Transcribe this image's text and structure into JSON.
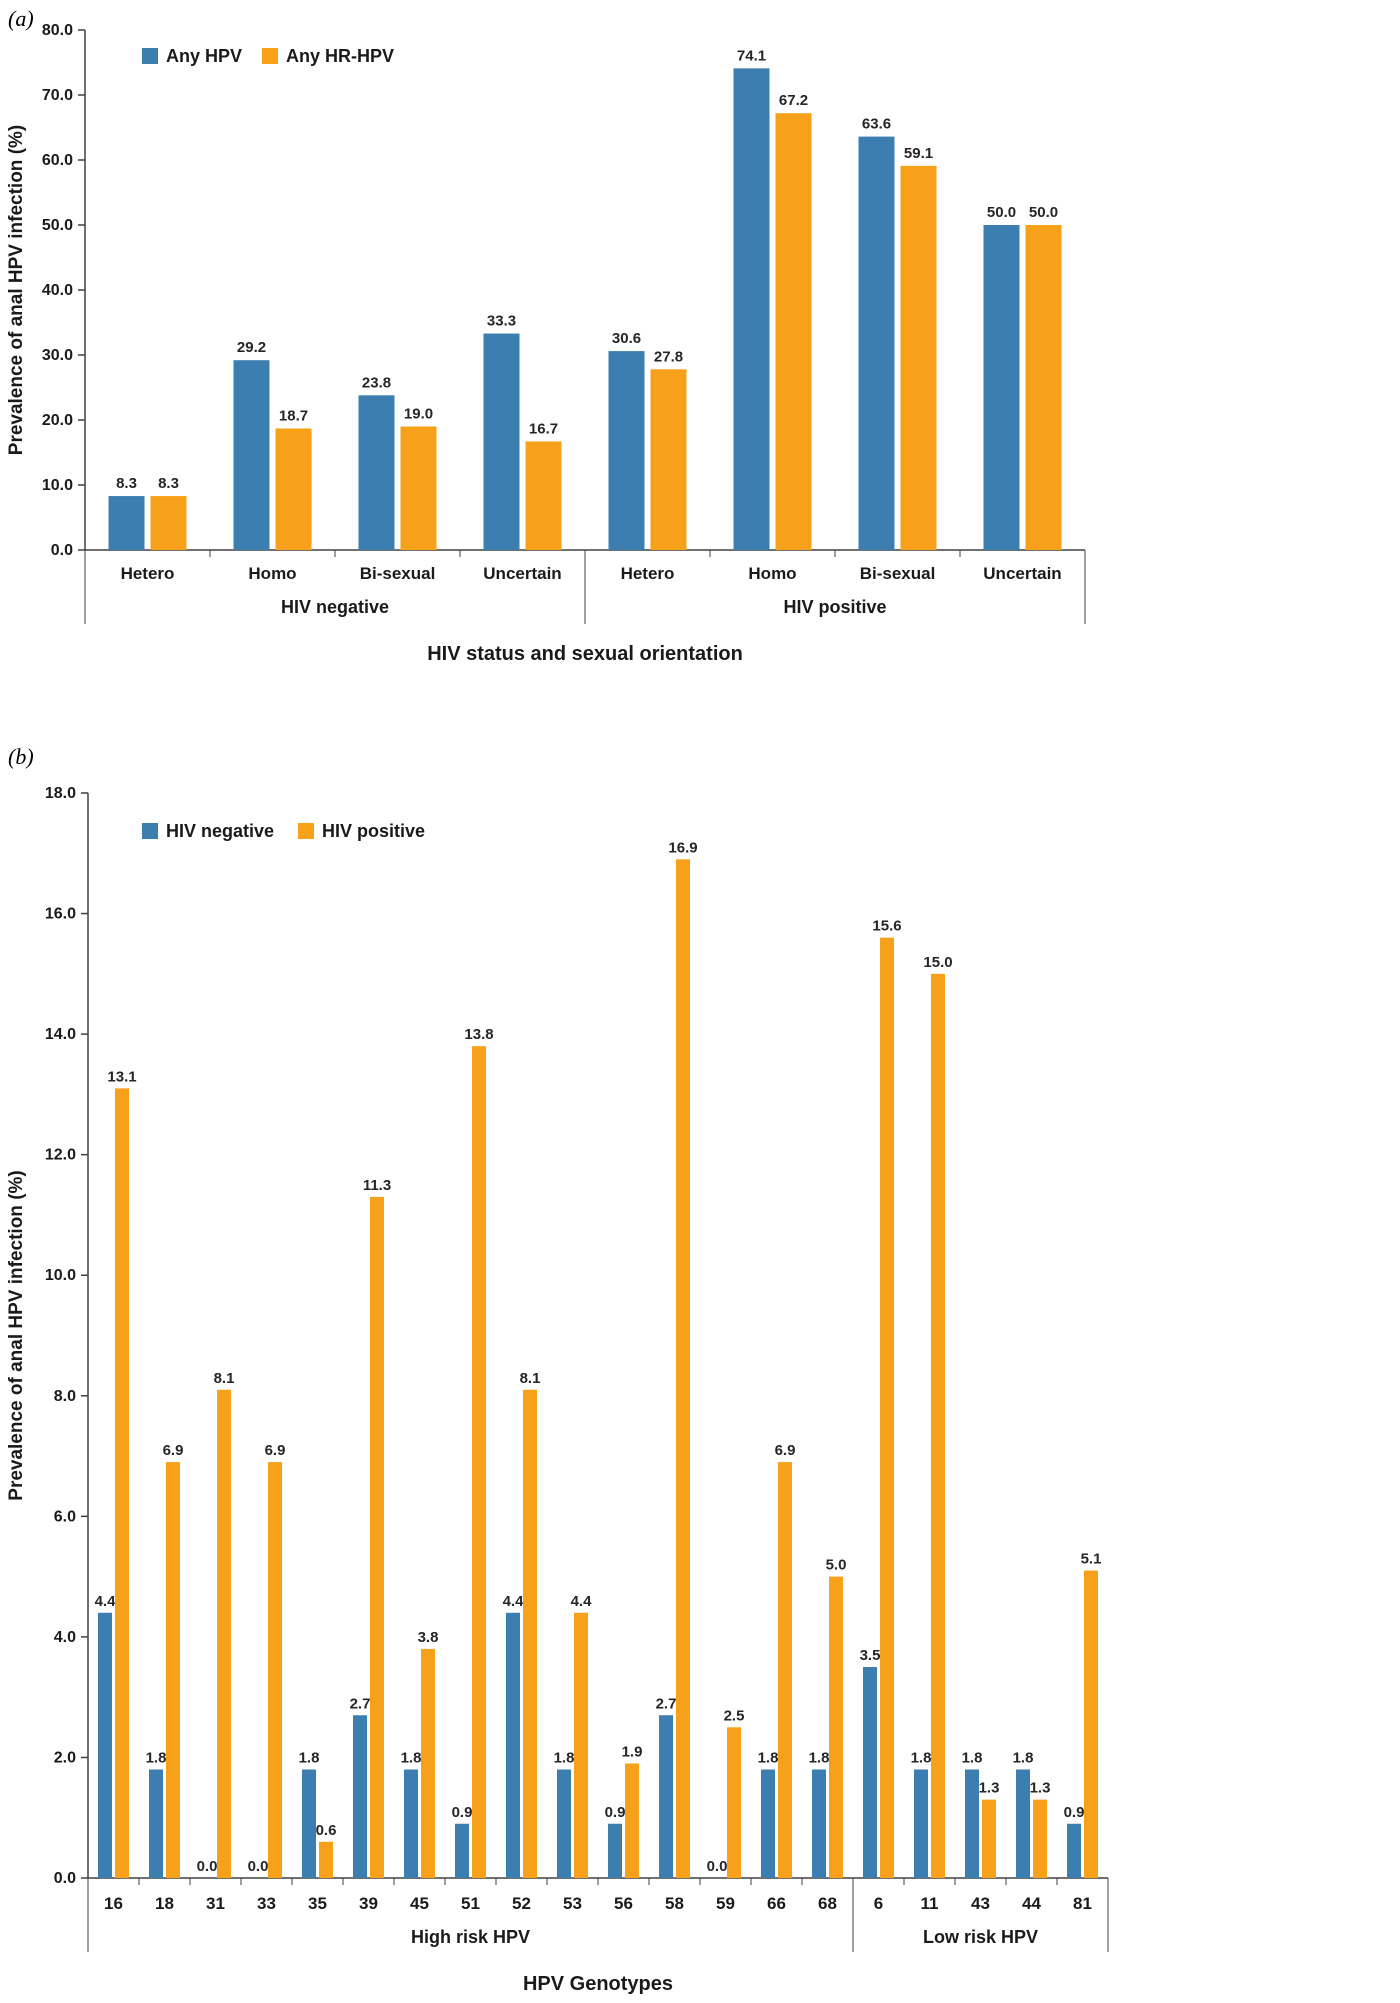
{
  "page": {
    "panel_a_label": "(a)",
    "panel_b_label": "(b)"
  },
  "colors": {
    "blue": "#3C7EB0",
    "orange": "#F7A11A",
    "value_label": "#262626",
    "axis": "#404040",
    "text": "#1A1A1A"
  },
  "chart_data": [
    {
      "type": "bar",
      "panel": "a",
      "title": "",
      "xlabel": "HIV status and sexual orientation",
      "ylabel": "Prevalence of anal HPV infection (%)",
      "ylim": [
        0,
        80
      ],
      "ytick_step": 10,
      "grid": false,
      "legend_position": "top-left-inside",
      "groups": [
        {
          "label": "HIV negative",
          "categories": [
            "Hetero",
            "Homo",
            "Bi-sexual",
            "Uncertain"
          ]
        },
        {
          "label": "HIV positive",
          "categories": [
            "Hetero",
            "Homo",
            "Bi-sexual",
            "Uncertain"
          ]
        }
      ],
      "series": [
        {
          "name": "Any HPV",
          "color_key": "blue",
          "values": [
            8.3,
            29.2,
            23.8,
            33.3,
            30.6,
            74.1,
            63.6,
            50.0
          ]
        },
        {
          "name": "Any HR-HPV",
          "color_key": "orange",
          "values": [
            8.3,
            18.7,
            19.0,
            16.7,
            27.8,
            67.2,
            59.1,
            50.0
          ]
        }
      ]
    },
    {
      "type": "bar",
      "panel": "b",
      "title": "",
      "xlabel": "HPV Genotypes",
      "ylabel": "Prevalence of anal HPV infection (%)",
      "ylim": [
        0,
        18
      ],
      "ytick_step": 2,
      "grid": false,
      "legend_position": "top-left-inside",
      "groups": [
        {
          "label": "High risk HPV",
          "categories": [
            "16",
            "18",
            "31",
            "33",
            "35",
            "39",
            "45",
            "51",
            "52",
            "53",
            "56",
            "58",
            "59",
            "66",
            "68"
          ]
        },
        {
          "label": "Low risk HPV",
          "categories": [
            "6",
            "11",
            "43",
            "44",
            "81"
          ]
        }
      ],
      "series": [
        {
          "name": "HIV negative",
          "color_key": "blue",
          "values": [
            4.4,
            1.8,
            0.0,
            0.0,
            1.8,
            2.7,
            1.8,
            0.9,
            4.4,
            1.8,
            0.9,
            2.7,
            0.0,
            1.8,
            1.8,
            3.5,
            1.8,
            1.8,
            1.8,
            0.9
          ]
        },
        {
          "name": "HIV positive",
          "color_key": "orange",
          "values": [
            13.1,
            6.9,
            8.1,
            6.9,
            0.6,
            11.3,
            3.8,
            13.8,
            8.1,
            4.4,
            1.9,
            16.9,
            2.5,
            6.9,
            5.0,
            15.6,
            15.0,
            1.3,
            1.3,
            5.1
          ]
        }
      ]
    }
  ]
}
